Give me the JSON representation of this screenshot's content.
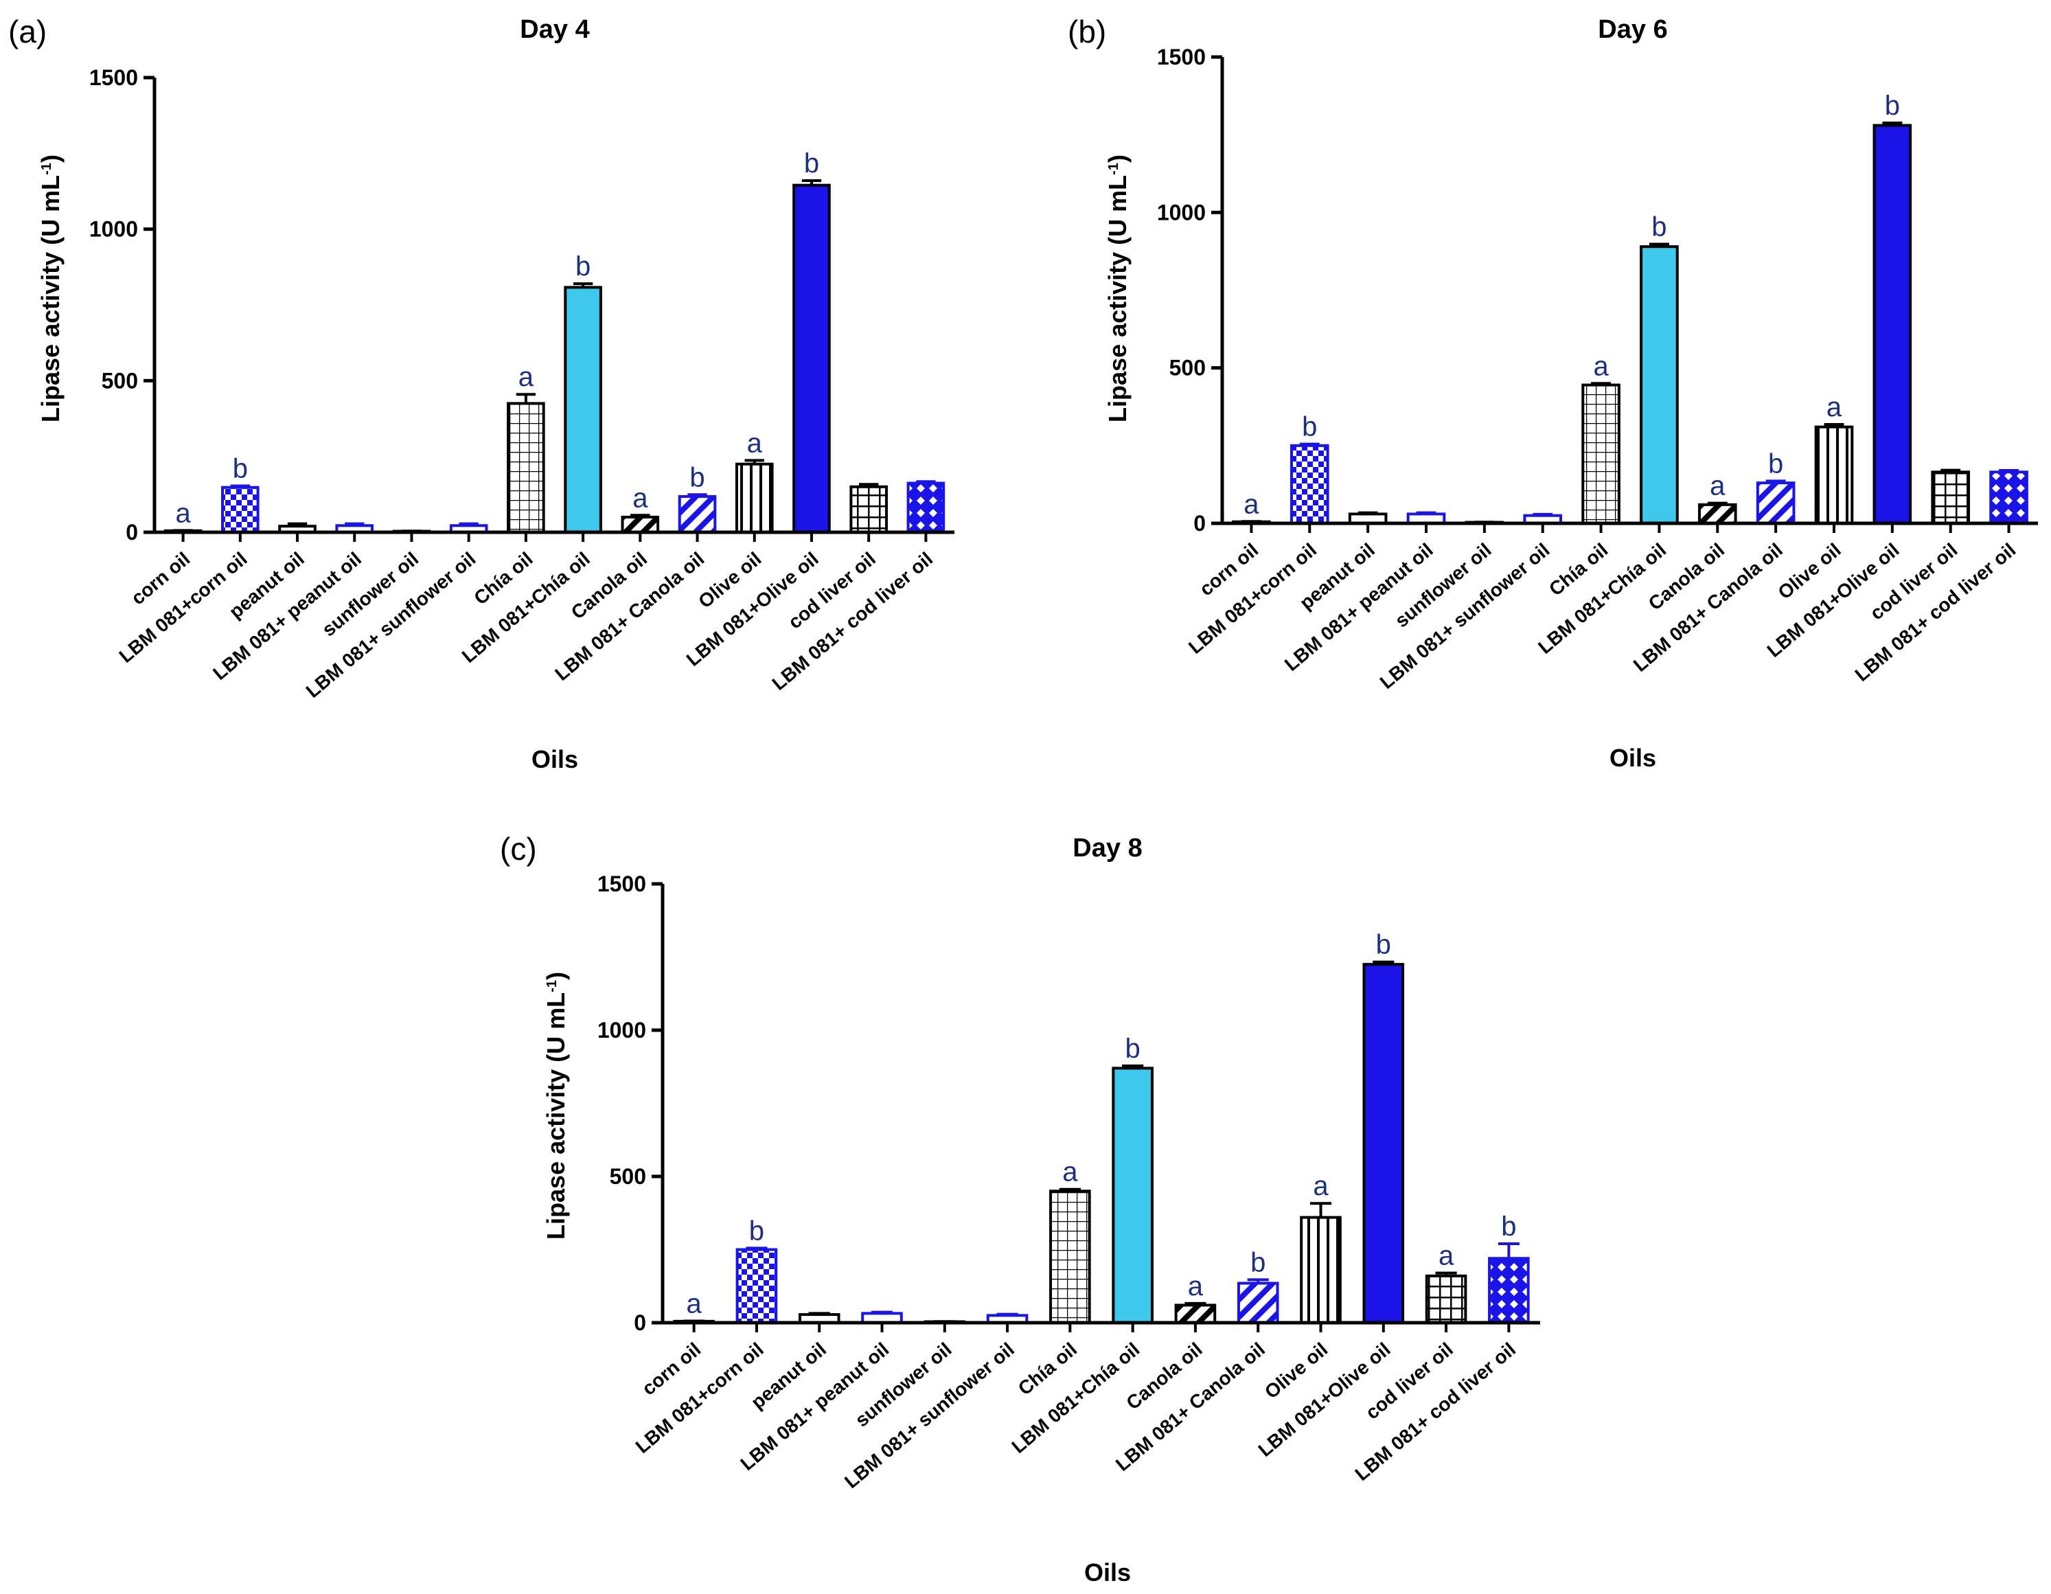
{
  "colors": {
    "black": "#000000",
    "blue": "#1a14e8",
    "cyan": "#3ec8ec",
    "label_blue": "#1c2f80"
  },
  "chart_data": [
    {
      "panel": "(a)",
      "type": "bar",
      "title": "Day 4",
      "xlabel": "Oils",
      "ylabel": "Lipase activity (U mL",
      "ylabel_unit_exponent": "-1",
      "ylabel_close": ")",
      "ylim": [
        0,
        1500
      ],
      "yticks": [
        "0",
        "500",
        "1000",
        "1500"
      ],
      "categories": [
        "corn oil",
        "LBM 081+corn oil",
        "peanut oil",
        "LBM 081+ peanut oil",
        "sunflower oil",
        "LBM 081+ sunflower oil",
        "Chía oil",
        "LBM 081+Chía oil",
        "Canola oil",
        "LBM 081+ Canola oil",
        "Olive oil",
        "LBM 081+Olive oil",
        "cod liver oil",
        "LBM 081+ cod liver oil"
      ],
      "values": [
        5,
        148,
        20,
        22,
        3,
        22,
        425,
        808,
        50,
        118,
        225,
        1145,
        150,
        162
      ],
      "errors": [
        1,
        5,
        8,
        6,
        1,
        6,
        30,
        12,
        6,
        6,
        12,
        15,
        8,
        5
      ],
      "significance": [
        "a",
        "b",
        "",
        "",
        "",
        "",
        "a",
        "b",
        "a",
        "b",
        "a",
        "b",
        "",
        ""
      ],
      "bar_styles": [
        "black",
        "blue-check",
        "black",
        "blue",
        "black",
        "blue",
        "black-grid",
        "cyan",
        "black-diag",
        "blue-diag",
        "black-vert",
        "blue-solid",
        "black-thick-grid",
        "blue-diamond"
      ]
    },
    {
      "panel": "(b)",
      "type": "bar",
      "title": "Day 6",
      "xlabel": "Oils",
      "ylabel": "Lipase activity (U mL",
      "ylabel_unit_exponent": "-1",
      "ylabel_close": ")",
      "ylim": [
        0,
        1500
      ],
      "yticks": [
        "0",
        "500",
        "1000",
        "1500"
      ],
      "categories": [
        "corn oil",
        "LBM 081+corn oil",
        "peanut oil",
        "LBM 081+ peanut oil",
        "sunflower oil",
        "LBM 081+ sunflower oil",
        "Chía oil",
        "LBM 081+Chía oil",
        "Canola oil",
        "LBM 081+ Canola oil",
        "Olive oil",
        "LBM 081+Olive oil",
        "cod liver oil",
        "LBM 081+ cod liver oil"
      ],
      "values": [
        5,
        250,
        30,
        30,
        3,
        25,
        445,
        890,
        60,
        130,
        310,
        1280,
        165,
        165
      ],
      "errors": [
        1,
        5,
        4,
        4,
        1,
        4,
        5,
        8,
        5,
        6,
        8,
        8,
        6,
        5
      ],
      "significance": [
        "a",
        "b",
        "",
        "",
        "",
        "",
        "a",
        "b",
        "a",
        "b",
        "a",
        "b",
        "",
        ""
      ],
      "bar_styles": [
        "black",
        "blue-check",
        "black",
        "blue",
        "black",
        "blue",
        "black-grid",
        "cyan",
        "black-diag",
        "blue-diag",
        "black-vert",
        "blue-solid",
        "black-thick-grid",
        "blue-diamond"
      ]
    },
    {
      "panel": "(c)",
      "type": "bar",
      "title": "Day 8",
      "xlabel": "Oils",
      "ylabel": "Lipase activity (U mL",
      "ylabel_unit_exponent": "-1",
      "ylabel_close": ")",
      "ylim": [
        0,
        1500
      ],
      "yticks": [
        "0",
        "500",
        "1000",
        "1500"
      ],
      "categories": [
        "corn oil",
        "LBM 081+corn oil",
        "peanut oil",
        "LBM 081+ peanut oil",
        "sunflower oil",
        "LBM 081+ sunflower oil",
        "Chía oil",
        "LBM 081+Chía oil",
        "Canola oil",
        "LBM 081+ Canola oil",
        "Olive oil",
        "LBM 081+Olive oil",
        "cod liver oil",
        "LBM 081+ cod liver oil"
      ],
      "values": [
        5,
        250,
        28,
        32,
        3,
        25,
        450,
        870,
        60,
        135,
        360,
        1225,
        160,
        220
      ],
      "errors": [
        1,
        5,
        4,
        4,
        1,
        4,
        6,
        8,
        6,
        12,
        48,
        8,
        10,
        50
      ],
      "significance": [
        "a",
        "b",
        "",
        "",
        "",
        "",
        "a",
        "b",
        "a",
        "b",
        "a",
        "b",
        "a",
        "b"
      ],
      "bar_styles": [
        "black",
        "blue-check",
        "black",
        "blue",
        "black",
        "blue",
        "black-grid",
        "cyan",
        "black-diag",
        "blue-diag",
        "black-vert",
        "blue-solid",
        "black-thick-grid",
        "blue-diamond"
      ]
    }
  ]
}
